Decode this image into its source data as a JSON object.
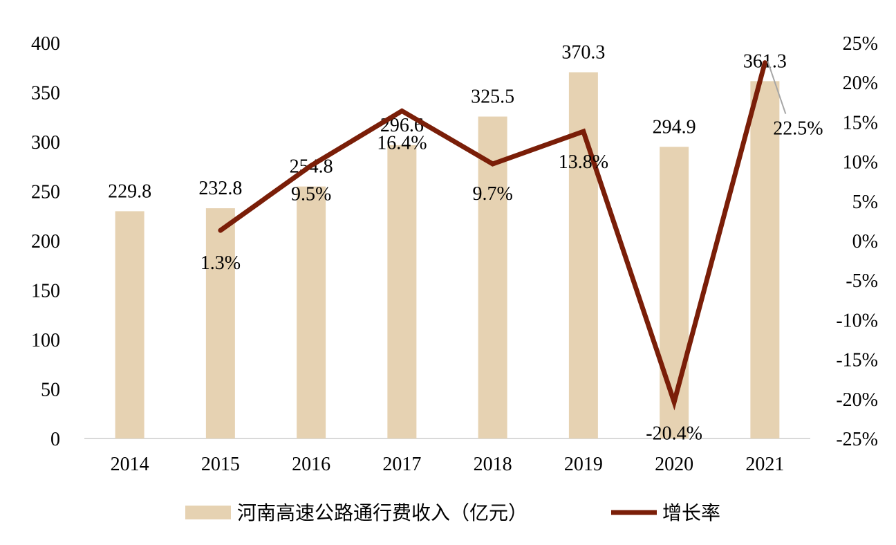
{
  "chart_data": {
    "type": "bar",
    "categories": [
      "2014",
      "2015",
      "2016",
      "2017",
      "2018",
      "2019",
      "2020",
      "2021"
    ],
    "series": [
      {
        "name": "河南高速公路通行费收入（亿元）",
        "type": "bar",
        "axis": "left",
        "values": [
          229.8,
          232.8,
          254.8,
          296.6,
          325.5,
          370.3,
          294.9,
          361.3
        ],
        "labels": [
          "229.8",
          "232.8",
          "254.8",
          "296.6",
          "325.5",
          "370.3",
          "294.9",
          "361.3"
        ],
        "color": "#e6d2b2"
      },
      {
        "name": "增长率",
        "type": "line",
        "axis": "right",
        "values": [
          null,
          1.3,
          9.5,
          16.4,
          9.7,
          13.8,
          -20.4,
          22.5
        ],
        "labels": [
          "",
          "1.3%",
          "9.5%",
          "16.4%",
          "9.7%",
          "13.8%",
          "-20.4%",
          "22.5%"
        ],
        "color": "#7a1e08"
      }
    ],
    "y_left": {
      "min": 0,
      "max": 400,
      "ticks": [
        0,
        50,
        100,
        150,
        200,
        250,
        300,
        350,
        400
      ],
      "tick_labels": [
        "0",
        "50",
        "100",
        "150",
        "200",
        "250",
        "300",
        "350",
        "400"
      ]
    },
    "y_right": {
      "min": -25,
      "max": 25,
      "ticks": [
        -25,
        -20,
        -15,
        -10,
        -5,
        0,
        5,
        10,
        15,
        20,
        25
      ],
      "tick_labels": [
        "-25%",
        "-20%",
        "-15%",
        "-10%",
        "-5%",
        "0%",
        "5%",
        "10%",
        "15%",
        "20%",
        "25%"
      ]
    },
    "grid": false,
    "legend_position": "bottom",
    "axis_color": "#d9d9d9",
    "leader_line_color": "#a6a6a6"
  }
}
